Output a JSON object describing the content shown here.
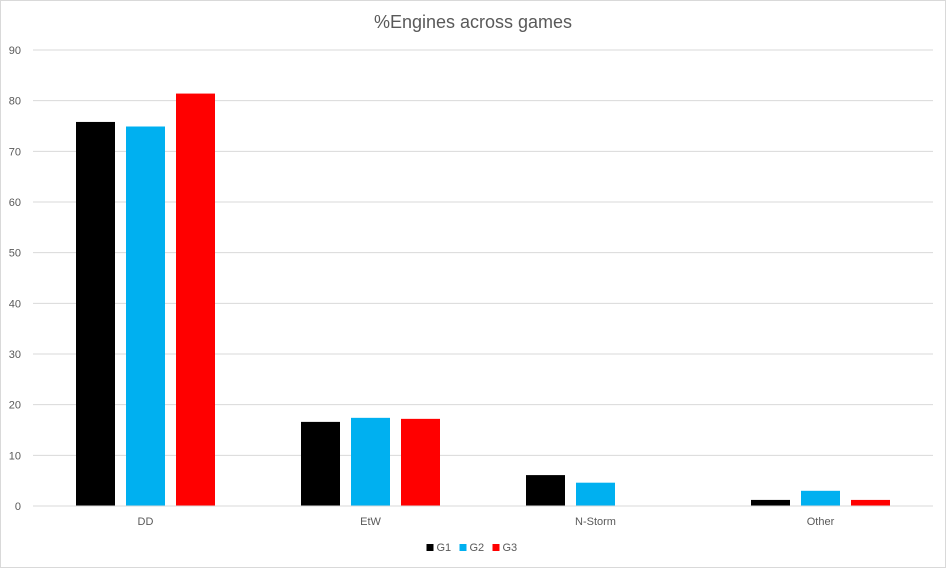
{
  "chart_data": {
    "type": "bar",
    "title": "%Engines across games",
    "xlabel": "",
    "ylabel": "",
    "ylim": [
      0,
      90
    ],
    "yticks": [
      0,
      10,
      20,
      30,
      40,
      50,
      60,
      70,
      80,
      90
    ],
    "grid": true,
    "legend_position": "bottom",
    "categories": [
      "DD",
      "EtW",
      "N-Storm",
      "Other"
    ],
    "series": [
      {
        "name": "G1",
        "color": "#000000",
        "values": [
          75.8,
          16.6,
          6.1,
          1.2
        ]
      },
      {
        "name": "G2",
        "color": "#00b0f0",
        "values": [
          74.9,
          17.4,
          4.6,
          3.0
        ]
      },
      {
        "name": "G3",
        "color": "#ff0000",
        "values": [
          81.4,
          17.2,
          0,
          1.2
        ]
      }
    ]
  }
}
